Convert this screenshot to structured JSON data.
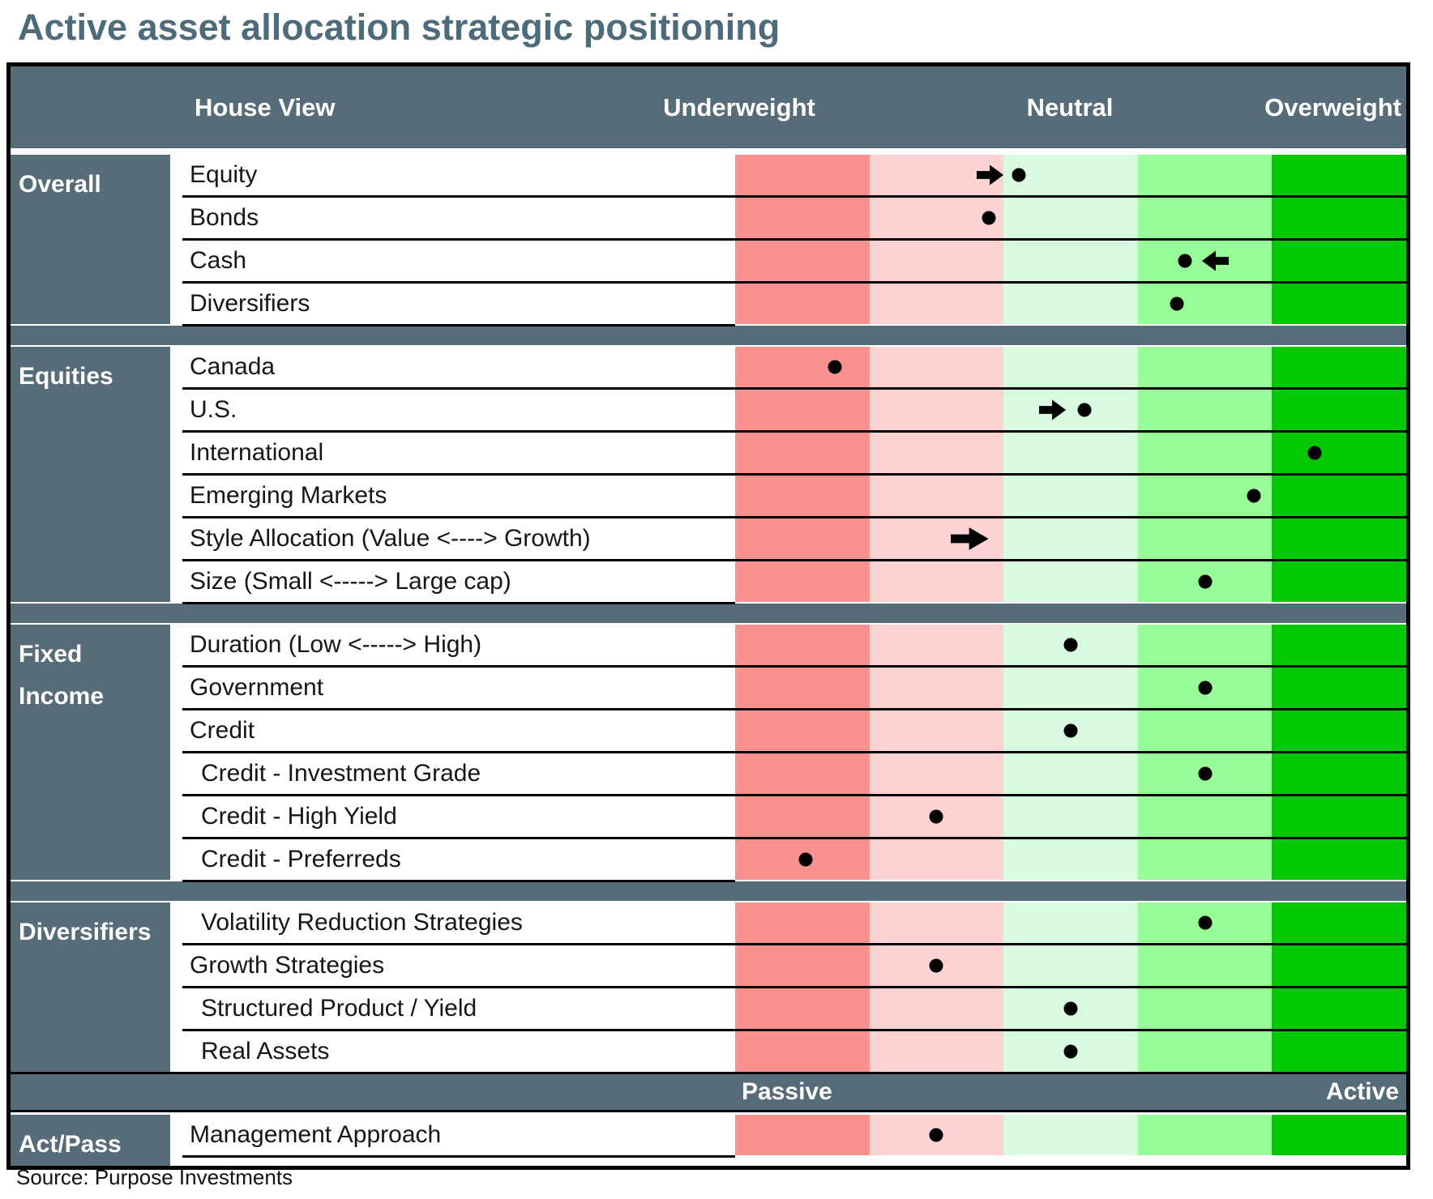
{
  "title": "Active asset allocation strategic positioning",
  "source": "Source: Purpose Investments",
  "colors": {
    "slate": "#566D79",
    "title_text": "#4D6B7A",
    "band_strong_underweight": "#FA9191",
    "band_underweight": "#FCD2D2",
    "band_neutral": "#D8FADE",
    "band_overweight": "#97FB97",
    "band_strong_overweight": "#02C802",
    "dot": "#000000",
    "arrow": "#000000"
  },
  "header": {
    "house_view": "House View",
    "underweight": "Underweight",
    "neutral": "Neutral",
    "overweight": "Overweight"
  },
  "footer_scale": {
    "left": "Passive",
    "right": "Active"
  },
  "chart_data": {
    "type": "table",
    "title": "Active asset allocation strategic positioning",
    "scale_headers": [
      "Underweight",
      "Neutral",
      "Overweight"
    ],
    "scale_note": "dot position measured 0-100 from max underweight (left) to max overweight (right); five equal color bands of 20 each; 50 = neutral center",
    "band_colors": [
      "#FA9191",
      "#FCD2D2",
      "#D8FADE",
      "#97FB97",
      "#02C802"
    ],
    "sections": [
      {
        "label": "Overall",
        "rows": [
          {
            "label": "Equity",
            "dot_pct": 42.3,
            "arrow": {
              "dir": "right",
              "pct": 38,
              "size": "normal"
            }
          },
          {
            "label": "Bonds",
            "dot_pct": 37.8
          },
          {
            "label": "Cash",
            "dot_pct": 67,
            "arrow": {
              "dir": "left",
              "pct": 71.5,
              "size": "normal"
            }
          },
          {
            "label": "Diversifiers",
            "dot_pct": 65.8
          }
        ]
      },
      {
        "label": "Equities",
        "rows": [
          {
            "label": "Canada",
            "dot_pct": 14.8
          },
          {
            "label": "U.S.",
            "dot_pct": 52,
            "arrow": {
              "dir": "right",
              "pct": 47.4,
              "size": "normal"
            }
          },
          {
            "label": "International",
            "dot_pct": 86.3
          },
          {
            "label": "Emerging Markets",
            "dot_pct": 77.3
          },
          {
            "label": "Style Allocation (Value <----> Growth)",
            "dot_pct": null,
            "arrow": {
              "dir": "right",
              "pct": 35,
              "size": "large"
            }
          },
          {
            "label": "Size (Small <----->  Large cap)",
            "dot_pct": 70
          }
        ]
      },
      {
        "label": "Fixed\nIncome",
        "rows": [
          {
            "label": "Duration (Low <-----> High)",
            "dot_pct": 50
          },
          {
            "label": "Government",
            "dot_pct": 70
          },
          {
            "label": "Credit",
            "dot_pct": 50
          },
          {
            "label": "Credit - Investment Grade",
            "dot_pct": 70,
            "indent": true
          },
          {
            "label": "Credit - High Yield",
            "dot_pct": 30,
            "indent": true
          },
          {
            "label": "Credit - Preferreds",
            "dot_pct": 10.5,
            "indent": true
          }
        ]
      },
      {
        "label": "Diversifiers",
        "rows": [
          {
            "label": "Volatility Reduction Strategies",
            "dot_pct": 70,
            "indent": true
          },
          {
            "label": "Growth Strategies",
            "dot_pct": 30
          },
          {
            "label": "Structured Product / Yield",
            "dot_pct": 50,
            "indent": true
          },
          {
            "label": "Real Assets",
            "dot_pct": 50,
            "indent": true
          }
        ]
      }
    ],
    "act_pass_section": {
      "label": "Act/Pass",
      "rows": [
        {
          "label": "Management Approach",
          "dot_pct": 30
        }
      ]
    }
  }
}
